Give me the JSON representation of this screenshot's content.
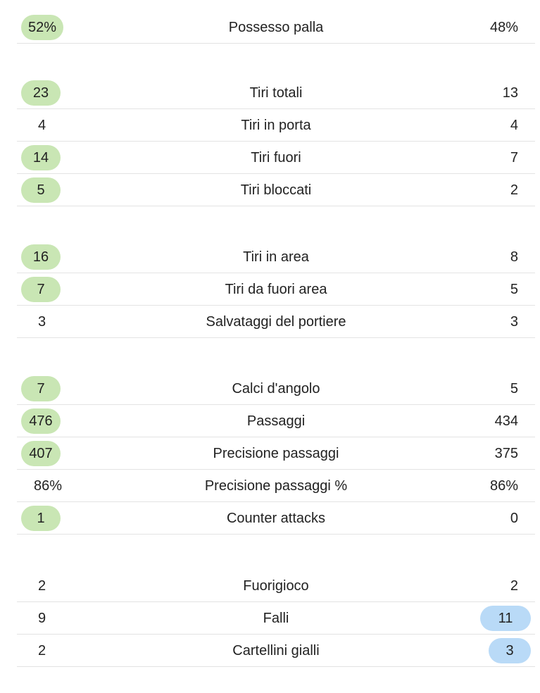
{
  "groups": [
    {
      "rows": [
        {
          "label": "Possesso palla",
          "home": "52%",
          "away": "48%",
          "highlight": "home"
        }
      ]
    },
    {
      "rows": [
        {
          "label": "Tiri totali",
          "home": "23",
          "away": "13",
          "highlight": "home"
        },
        {
          "label": "Tiri in porta",
          "home": "4",
          "away": "4",
          "highlight": "none"
        },
        {
          "label": "Tiri fuori",
          "home": "14",
          "away": "7",
          "highlight": "home"
        },
        {
          "label": "Tiri bloccati",
          "home": "5",
          "away": "2",
          "highlight": "home"
        }
      ]
    },
    {
      "rows": [
        {
          "label": "Tiri in area",
          "home": "16",
          "away": "8",
          "highlight": "home"
        },
        {
          "label": "Tiri da fuori area",
          "home": "7",
          "away": "5",
          "highlight": "home"
        },
        {
          "label": "Salvataggi del portiere",
          "home": "3",
          "away": "3",
          "highlight": "none"
        }
      ]
    },
    {
      "rows": [
        {
          "label": "Calci d'angolo",
          "home": "7",
          "away": "5",
          "highlight": "home"
        },
        {
          "label": "Passaggi",
          "home": "476",
          "away": "434",
          "highlight": "home"
        },
        {
          "label": "Precisione passaggi",
          "home": "407",
          "away": "375",
          "highlight": "home"
        },
        {
          "label": "Precisione passaggi %",
          "home": "86%",
          "away": "86%",
          "highlight": "none"
        },
        {
          "label": "Counter attacks",
          "home": "1",
          "away": "0",
          "highlight": "home"
        }
      ]
    },
    {
      "rows": [
        {
          "label": "Fuorigioco",
          "home": "2",
          "away": "2",
          "highlight": "none"
        },
        {
          "label": "Falli",
          "home": "9",
          "away": "11",
          "highlight": "away"
        },
        {
          "label": "Cartellini gialli",
          "home": "2",
          "away": "3",
          "highlight": "away"
        }
      ]
    }
  ],
  "colors": {
    "home_highlight": "#c9e6b4",
    "away_highlight": "#b9daf7",
    "divider": "#e3e3e3"
  }
}
